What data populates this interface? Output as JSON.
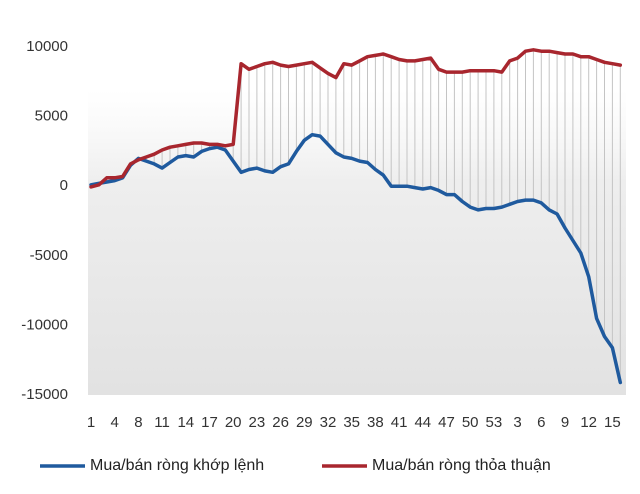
{
  "chart_data": {
    "type": "line",
    "categories": [
      "1",
      null,
      null,
      "4",
      null,
      null,
      "8",
      null,
      null,
      "11",
      null,
      null,
      "14",
      null,
      null,
      "17",
      null,
      null,
      "20",
      null,
      null,
      "23",
      null,
      null,
      "26",
      null,
      null,
      "29",
      null,
      null,
      "32",
      null,
      null,
      "35",
      null,
      null,
      "38",
      null,
      null,
      "41",
      null,
      null,
      "44",
      null,
      null,
      "47",
      null,
      null,
      "50",
      null,
      null,
      "53",
      null,
      null,
      "3",
      null,
      null,
      "6",
      null,
      null,
      "9",
      null,
      null,
      "12",
      null,
      null,
      "15",
      null
    ],
    "series": [
      {
        "name": "Mua/bán ròng khớp lệnh",
        "color": "#1f5a9e",
        "values": [
          100,
          200,
          300,
          400,
          600,
          1500,
          2000,
          1800,
          1600,
          1300,
          1700,
          2100,
          2200,
          2100,
          2500,
          2700,
          2800,
          2600,
          1800,
          1000,
          1200,
          1300,
          1100,
          1000,
          1400,
          1600,
          2500,
          3300,
          3700,
          3600,
          3000,
          2400,
          2100,
          2000,
          1800,
          1700,
          1200,
          800,
          0,
          0,
          0,
          -100,
          -200,
          -100,
          -300,
          -600,
          -600,
          -1100,
          -1500,
          -1700,
          -1600,
          -1600,
          -1500,
          -1300,
          -1100,
          -1000,
          -1000,
          -1200,
          -1700,
          -2000,
          -3000,
          -3900,
          -4800,
          -6500,
          -9500,
          -10800,
          -11600,
          -14100
        ]
      },
      {
        "name": "Mua/bán ròng thỏa thuận",
        "color": "#a8262e",
        "values": [
          -50,
          100,
          600,
          600,
          700,
          1600,
          1900,
          2100,
          2300,
          2600,
          2800,
          2900,
          3000,
          3100,
          3100,
          3000,
          3000,
          2900,
          3000,
          8800,
          8400,
          8600,
          8800,
          8900,
          8700,
          8600,
          8700,
          8800,
          8900,
          8500,
          8100,
          7800,
          8800,
          8700,
          9000,
          9300,
          9400,
          9500,
          9300,
          9100,
          9000,
          9000,
          9100,
          9200,
          8400,
          8200,
          8200,
          8200,
          8300,
          8300,
          8300,
          8300,
          8200,
          9000,
          9200,
          9700,
          9800,
          9700,
          9700,
          9600,
          9500,
          9500,
          9300,
          9300,
          9100,
          8900,
          8800,
          8700
        ]
      }
    ],
    "ylim": [
      -15000,
      10000
    ],
    "yticks": [
      10000,
      5000,
      0,
      -5000,
      -10000,
      -15000
    ],
    "hilo_lines": true
  }
}
